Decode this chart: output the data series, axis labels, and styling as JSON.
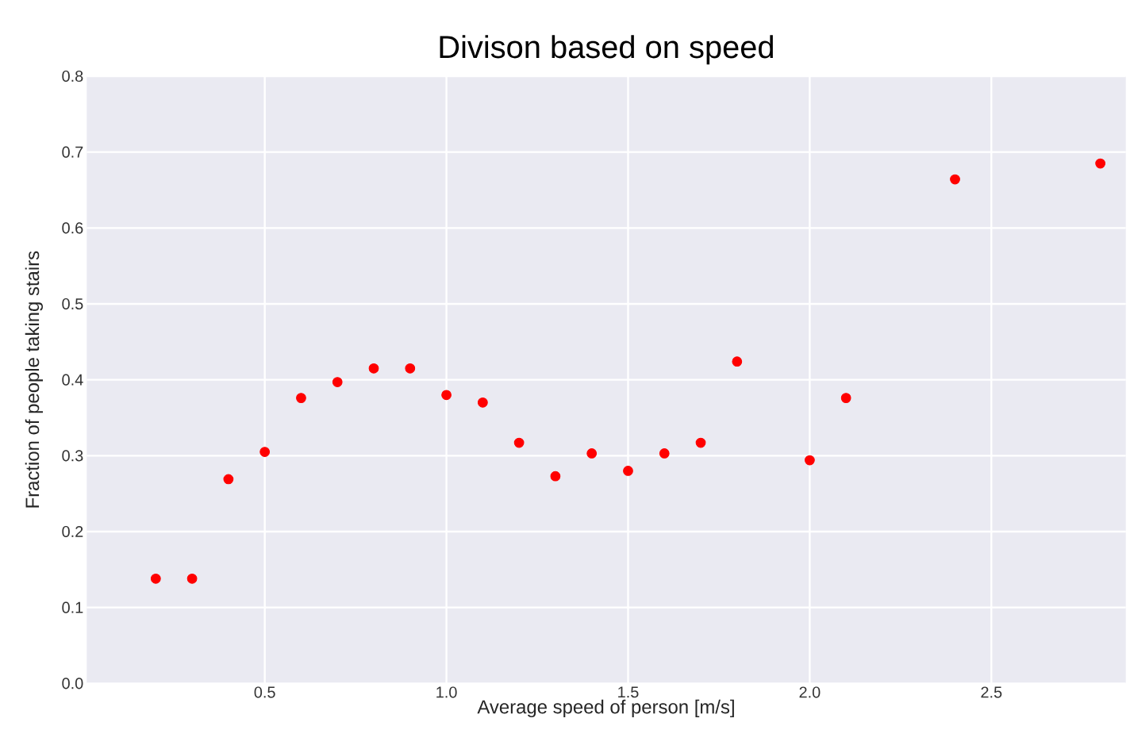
{
  "chart_data": {
    "type": "scatter",
    "title": "Divison based on speed",
    "xlabel": "Average speed of person [m/s]",
    "ylabel": "Fraction of people taking stairs",
    "x": [
      0.2,
      0.3,
      0.4,
      0.5,
      0.6,
      0.7,
      0.8,
      0.9,
      1.0,
      1.1,
      1.2,
      1.3,
      1.4,
      1.5,
      1.6,
      1.7,
      1.8,
      2.0,
      2.1,
      2.4,
      2.8
    ],
    "values": [
      0.138,
      0.138,
      0.269,
      0.305,
      0.376,
      0.397,
      0.415,
      0.415,
      0.38,
      0.37,
      0.317,
      0.273,
      0.303,
      0.28,
      0.303,
      0.317,
      0.424,
      0.294,
      0.376,
      0.664,
      0.685
    ],
    "color": "#ff0000",
    "grid": true,
    "xlim": [
      0.01,
      2.87
    ],
    "ylim": [
      0,
      0.8
    ],
    "xticks": [
      {
        "value": 0.5,
        "label": "0.5"
      },
      {
        "value": 1.0,
        "label": "1.0"
      },
      {
        "value": 1.5,
        "label": "1.5"
      },
      {
        "value": 2.0,
        "label": "2.0"
      },
      {
        "value": 2.5,
        "label": "2.5"
      }
    ],
    "yticks": [
      {
        "value": 0,
        "label": "0.0"
      },
      {
        "value": 0.1,
        "label": "0.1"
      },
      {
        "value": 0.2,
        "label": "0.2"
      },
      {
        "value": 0.3,
        "label": "0.3"
      },
      {
        "value": 0.4,
        "label": "0.4"
      },
      {
        "value": 0.5,
        "label": "0.5"
      },
      {
        "value": 0.6,
        "label": "0.6"
      },
      {
        "value": 0.7,
        "label": "0.7"
      },
      {
        "value": 0.8,
        "label": "0.8"
      }
    ]
  }
}
